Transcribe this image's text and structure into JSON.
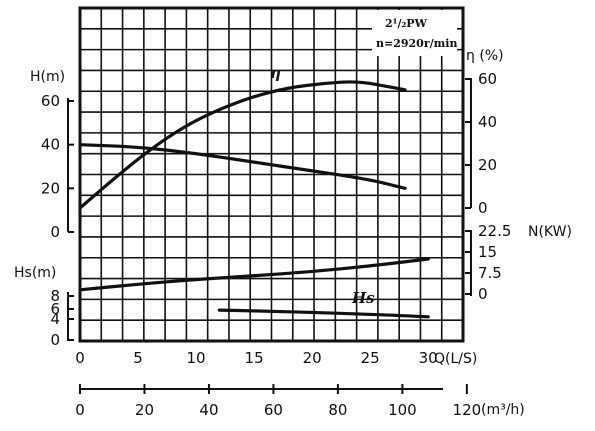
{
  "chart_data": {
    "type": "line",
    "title": "",
    "annotation": {
      "model": "2¹/₂PW",
      "speed": "n=2920r/min"
    },
    "x_axis": {
      "label": "Q(L/S)",
      "range": [
        0,
        33
      ],
      "ticks": [
        "0",
        "5",
        "10",
        "15",
        "20",
        "25",
        "30"
      ]
    },
    "x2_axis": {
      "label": "(m³/h)",
      "ticks": [
        "0",
        "20",
        "40",
        "60",
        "80",
        "100",
        "120"
      ]
    },
    "left_axes": {
      "H": {
        "label": "H(m)",
        "range": [
          0,
          70
        ],
        "ticks": [
          "0",
          "20",
          "40",
          "60"
        ]
      },
      "Hs": {
        "label": "Hs(m)",
        "range": [
          0,
          8
        ],
        "ticks": [
          "0",
          "4",
          "6",
          "8"
        ]
      }
    },
    "right_axes": {
      "eta": {
        "label": "η (%)",
        "range": [
          0,
          70
        ],
        "ticks": [
          "0",
          "20",
          "40",
          "60"
        ]
      },
      "N": {
        "label": "N(KW)",
        "range": [
          0,
          22.5
        ],
        "ticks": [
          "0",
          "7.5",
          "15",
          "22.5"
        ]
      }
    },
    "series": [
      {
        "name": "η",
        "axis": "eta",
        "x": [
          0,
          3,
          6,
          9,
          12,
          15,
          18,
          21,
          24,
          27,
          28
        ],
        "y": [
          0,
          14,
          27,
          38,
          46,
          52,
          56,
          58,
          59,
          56,
          55
        ]
      },
      {
        "name": "",
        "axis": "H",
        "x": [
          0,
          5,
          10,
          15,
          20,
          25,
          28
        ],
        "y": [
          40,
          39,
          36,
          32,
          28,
          24,
          20
        ]
      },
      {
        "name": "",
        "axis": "N",
        "x": [
          0,
          5,
          10,
          15,
          20,
          25,
          30
        ],
        "y": [
          1.5,
          3.5,
          5.2,
          6.5,
          8,
          10,
          12.5
        ]
      },
      {
        "name": "Hs",
        "axis": "Hs",
        "x": [
          12,
          16,
          20,
          24,
          28,
          30
        ],
        "y": [
          5.5,
          5.3,
          5.1,
          4.8,
          4.5,
          4.3
        ]
      }
    ],
    "grid": true,
    "legend": "none"
  }
}
